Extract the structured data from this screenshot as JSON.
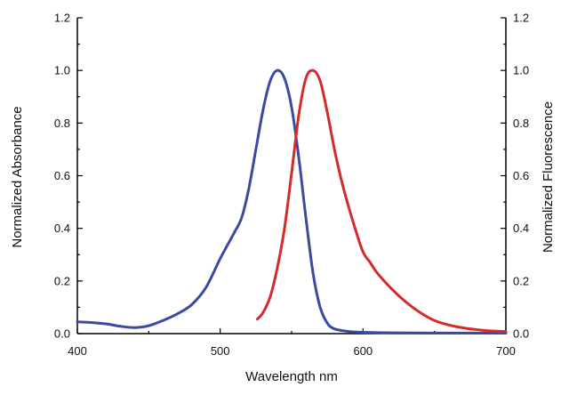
{
  "chart_data": {
    "type": "line",
    "xlabel": "Wavelength nm",
    "ylabel_left": "Normalized Absorbance",
    "ylabel_right": "Normalized Fluorescence",
    "xlim": [
      400,
      700
    ],
    "ylim_left": [
      0,
      1.2
    ],
    "ylim_right": [
      0,
      1.2
    ],
    "x_ticks": [
      "400",
      "500",
      "600",
      "700"
    ],
    "y_ticks": [
      "0.0",
      "0.2",
      "0.4",
      "0.6",
      "0.8",
      "1.0",
      "1.2"
    ],
    "grid": false,
    "legend": "none",
    "series": [
      {
        "axis": "left",
        "color": "#3b4aa0",
        "x": [
          400,
          410,
          420,
          430,
          440,
          450,
          460,
          470,
          480,
          490,
          500,
          510,
          515,
          520,
          525,
          530,
          535,
          540,
          545,
          550,
          555,
          560,
          565,
          570,
          575,
          580,
          590,
          600,
          620,
          650,
          700
        ],
        "y": [
          0.045,
          0.042,
          0.037,
          0.028,
          0.023,
          0.03,
          0.05,
          0.075,
          0.11,
          0.175,
          0.285,
          0.385,
          0.44,
          0.55,
          0.7,
          0.85,
          0.96,
          1.0,
          0.97,
          0.86,
          0.67,
          0.44,
          0.23,
          0.1,
          0.04,
          0.018,
          0.008,
          0.005,
          0.003,
          0.002,
          0.002
        ]
      },
      {
        "axis": "right",
        "color": "#d42a2a",
        "x": [
          526,
          530,
          535,
          540,
          545,
          550,
          555,
          560,
          565,
          570,
          575,
          580,
          585,
          590,
          595,
          600,
          605,
          610,
          620,
          630,
          640,
          650,
          660,
          670,
          680,
          690,
          700
        ],
        "y": [
          0.055,
          0.08,
          0.14,
          0.25,
          0.4,
          0.61,
          0.83,
          0.97,
          1.0,
          0.96,
          0.84,
          0.7,
          0.58,
          0.48,
          0.39,
          0.31,
          0.27,
          0.23,
          0.17,
          0.12,
          0.08,
          0.05,
          0.033,
          0.022,
          0.015,
          0.01,
          0.008
        ]
      }
    ]
  }
}
